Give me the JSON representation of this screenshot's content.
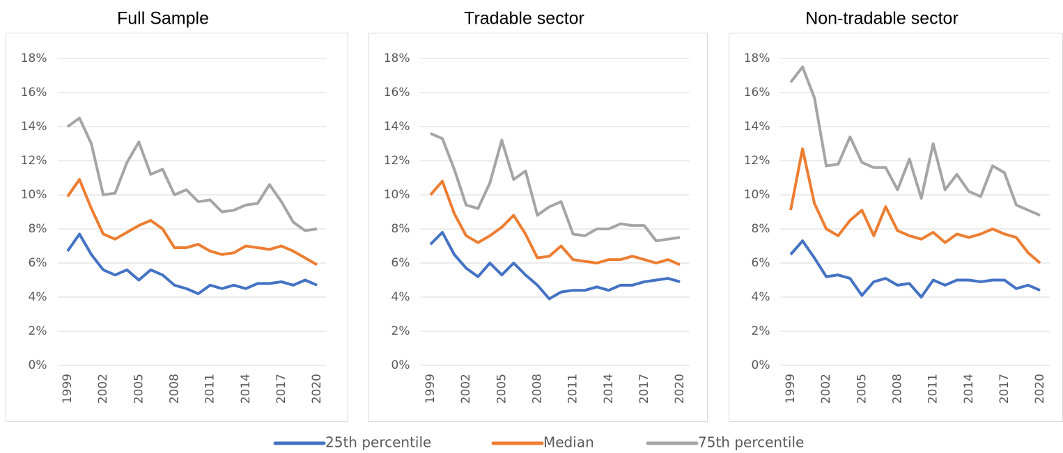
{
  "legend": [
    {
      "name": "25th percentile",
      "color": "#4472c4"
    },
    {
      "name": "Median",
      "color": "#ed7d31"
    },
    {
      "name": "75th percentile",
      "color": "#a5a5a5"
    }
  ],
  "chart_data": [
    {
      "type": "line",
      "title": "Full Sample",
      "grid": true,
      "categories": [
        "1999",
        null,
        null,
        "2002",
        null,
        null,
        "2005",
        null,
        null,
        "2008",
        null,
        null,
        "2011",
        null,
        null,
        "2014",
        null,
        null,
        "2017",
        null,
        null,
        "2020"
      ],
      "ylim": [
        0,
        18
      ],
      "yticks": [
        {
          "value": 0,
          "label": "0%"
        },
        {
          "value": 2,
          "label": "2%"
        },
        {
          "value": 4,
          "label": "4%"
        },
        {
          "value": 6,
          "label": "6%"
        },
        {
          "value": 8,
          "label": "8%"
        },
        {
          "value": 10,
          "label": "10%"
        },
        {
          "value": 12,
          "label": "12%"
        },
        {
          "value": 14,
          "label": "14%"
        },
        {
          "value": 16,
          "label": "16%"
        },
        {
          "value": 18,
          "label": "18%"
        }
      ],
      "series": [
        {
          "values": [
            6.7,
            7.7,
            6.5,
            5.6,
            5.3,
            5.6,
            5.0,
            5.6,
            5.3,
            4.7,
            4.5,
            4.2,
            4.7,
            4.5,
            4.7,
            4.5,
            4.8,
            4.8,
            4.9,
            4.7,
            5.0,
            4.7
          ]
        },
        {
          "values": [
            9.9,
            10.9,
            9.2,
            7.7,
            7.4,
            7.8,
            8.2,
            8.5,
            8.0,
            6.9,
            6.9,
            7.1,
            6.7,
            6.5,
            6.6,
            7.0,
            6.9,
            6.8,
            7.0,
            6.7,
            6.3,
            5.9
          ]
        },
        {
          "values": [
            14.0,
            14.5,
            13.0,
            10.0,
            10.1,
            11.9,
            13.1,
            11.2,
            11.5,
            10.0,
            10.3,
            9.6,
            9.7,
            9.0,
            9.1,
            9.4,
            9.5,
            10.6,
            9.6,
            8.4,
            7.9,
            8.0
          ]
        }
      ]
    },
    {
      "type": "line",
      "title": "Tradable sector",
      "grid": true,
      "categories": [
        "1999",
        null,
        null,
        "2002",
        null,
        null,
        "2005",
        null,
        null,
        "2008",
        null,
        null,
        "2011",
        null,
        null,
        "2014",
        null,
        null,
        "2017",
        null,
        null,
        "2020"
      ],
      "ylim": [
        0,
        18
      ],
      "yticks": [
        {
          "value": 0,
          "label": "0%"
        },
        {
          "value": 2,
          "label": "2%"
        },
        {
          "value": 4,
          "label": "4%"
        },
        {
          "value": 6,
          "label": "6%"
        },
        {
          "value": 8,
          "label": "8%"
        },
        {
          "value": 10,
          "label": "10%"
        },
        {
          "value": 12,
          "label": "12%"
        },
        {
          "value": 14,
          "label": "14%"
        },
        {
          "value": 16,
          "label": "16%"
        },
        {
          "value": 18,
          "label": "18%"
        }
      ],
      "series": [
        {
          "values": [
            7.1,
            7.8,
            6.5,
            5.7,
            5.2,
            6.0,
            5.3,
            6.0,
            5.3,
            4.7,
            3.9,
            4.3,
            4.4,
            4.4,
            4.6,
            4.4,
            4.7,
            4.7,
            4.9,
            5.0,
            5.1,
            4.9
          ]
        },
        {
          "values": [
            10.0,
            10.8,
            8.9,
            7.6,
            7.2,
            7.6,
            8.1,
            8.8,
            7.7,
            6.3,
            6.4,
            7.0,
            6.2,
            6.1,
            6.0,
            6.2,
            6.2,
            6.4,
            6.2,
            6.0,
            6.2,
            5.9
          ]
        },
        {
          "values": [
            13.6,
            13.3,
            11.5,
            9.4,
            9.2,
            10.7,
            13.2,
            10.9,
            11.4,
            8.8,
            9.3,
            9.6,
            7.7,
            7.6,
            8.0,
            8.0,
            8.3,
            8.2,
            8.2,
            7.3,
            7.4,
            7.5
          ]
        }
      ]
    },
    {
      "type": "line",
      "title": "Non-tradable sector",
      "grid": true,
      "categories": [
        "1999",
        null,
        null,
        "2002",
        null,
        null,
        "2005",
        null,
        null,
        "2008",
        null,
        null,
        "2011",
        null,
        null,
        "2014",
        null,
        null,
        "2017",
        null,
        null,
        "2020"
      ],
      "ylim": [
        0,
        18
      ],
      "yticks": [
        {
          "value": 0,
          "label": "0%"
        },
        {
          "value": 2,
          "label": "2%"
        },
        {
          "value": 4,
          "label": "4%"
        },
        {
          "value": 6,
          "label": "6%"
        },
        {
          "value": 8,
          "label": "8%"
        },
        {
          "value": 10,
          "label": "10%"
        },
        {
          "value": 12,
          "label": "12%"
        },
        {
          "value": 14,
          "label": "14%"
        },
        {
          "value": 16,
          "label": "16%"
        },
        {
          "value": 18,
          "label": "18%"
        }
      ],
      "series": [
        {
          "values": [
            6.5,
            7.3,
            6.3,
            5.2,
            5.3,
            5.1,
            4.1,
            4.9,
            5.1,
            4.7,
            4.8,
            4.0,
            5.0,
            4.7,
            5.0,
            5.0,
            4.9,
            5.0,
            5.0,
            4.5,
            4.7,
            4.4
          ]
        },
        {
          "values": [
            9.1,
            12.7,
            9.5,
            8.0,
            7.6,
            8.5,
            9.1,
            7.6,
            9.3,
            7.9,
            7.6,
            7.4,
            7.8,
            7.2,
            7.7,
            7.5,
            7.7,
            8.0,
            7.7,
            7.5,
            6.6,
            6.0
          ]
        },
        {
          "values": [
            16.6,
            17.5,
            15.7,
            11.7,
            11.8,
            13.4,
            11.9,
            11.6,
            11.6,
            10.3,
            12.1,
            9.8,
            13.0,
            10.3,
            11.2,
            10.2,
            9.9,
            11.7,
            11.3,
            9.4,
            9.1,
            8.8
          ]
        }
      ]
    }
  ]
}
